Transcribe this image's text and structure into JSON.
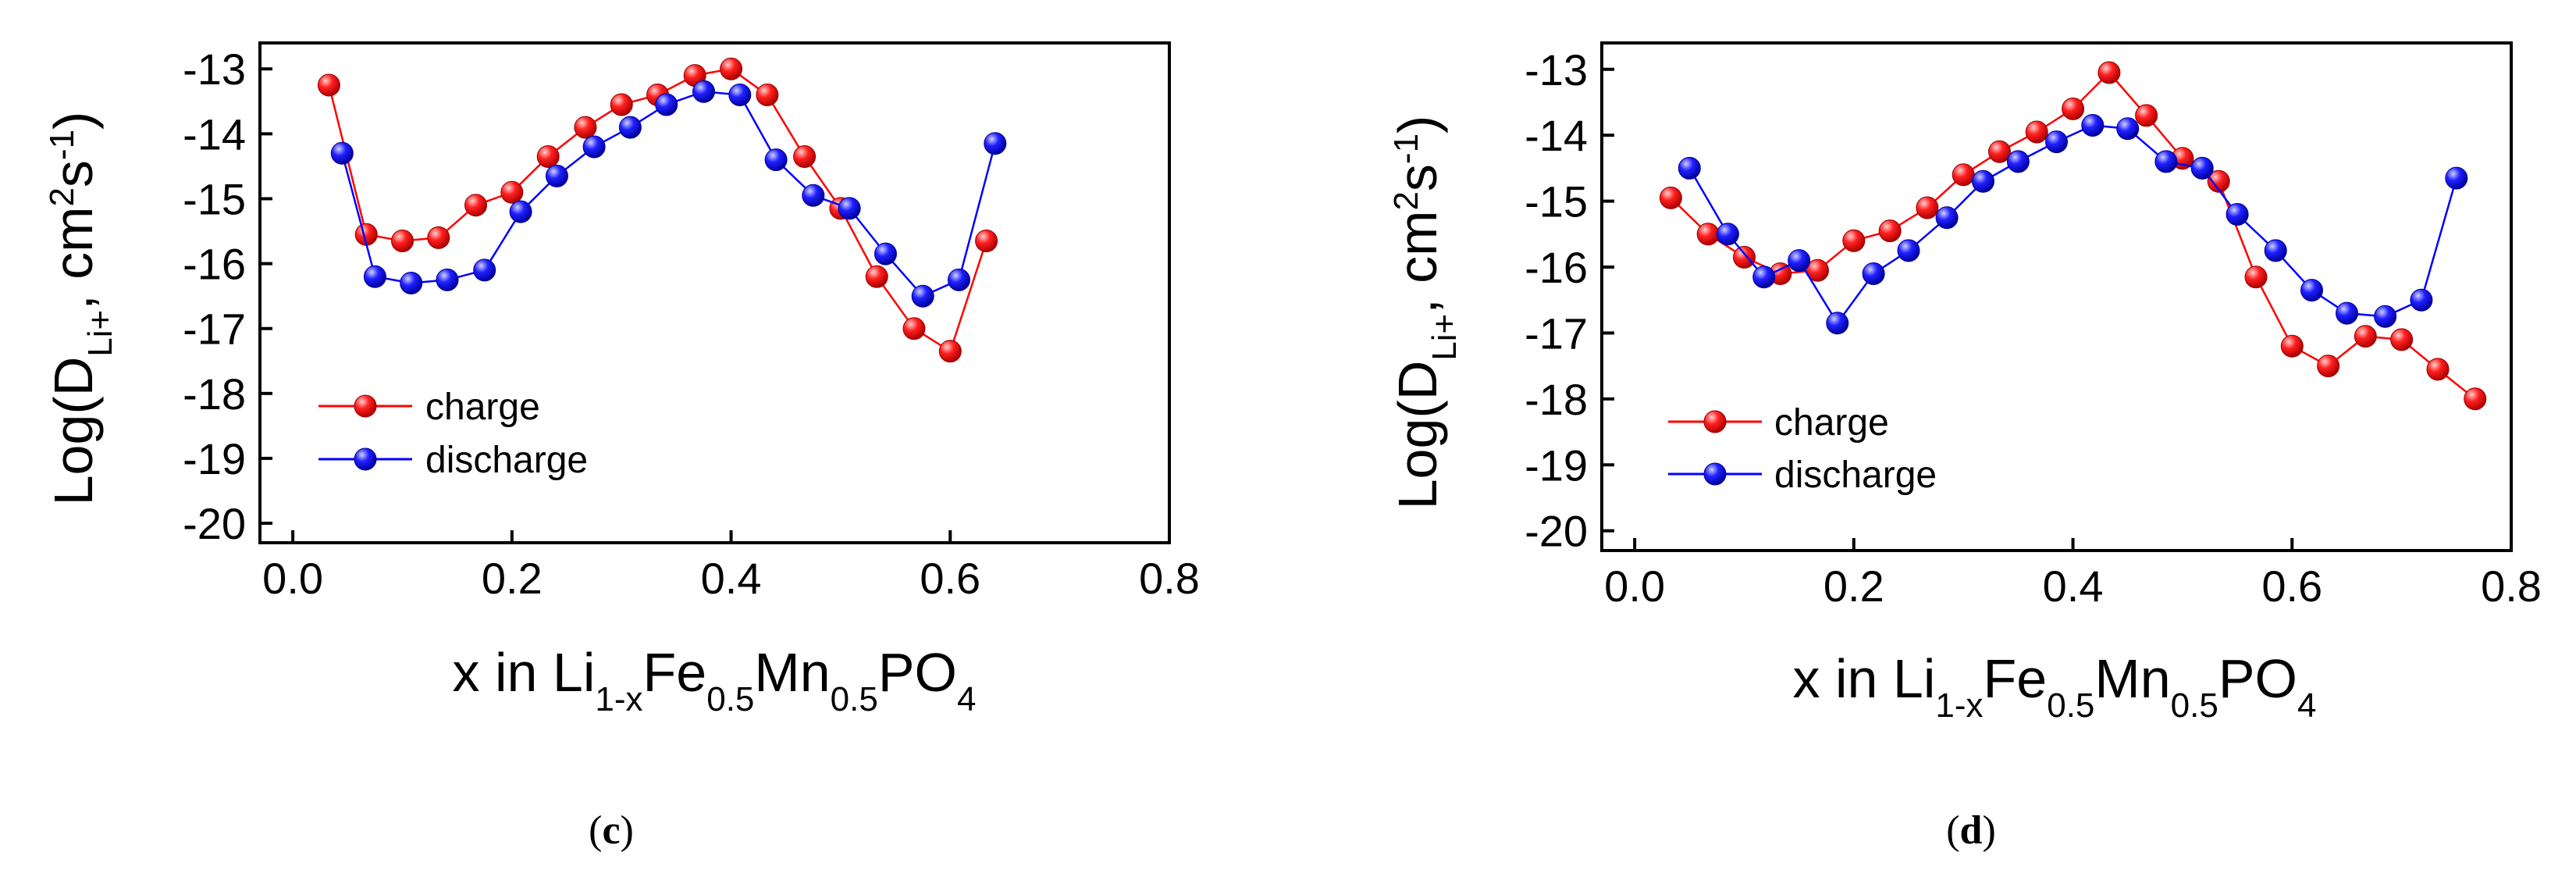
{
  "chart_data": [
    {
      "type": "line",
      "panel_label": "c",
      "xlabel": {
        "base": "x in Li",
        "sub1": "1-x",
        "mid1": "Fe",
        "sub2": "0.5",
        "mid2": "Mn",
        "sub3": "0.5",
        "mid3": "PO",
        "sub4": "4"
      },
      "ylabel": {
        "base": "Log(D",
        "sub": "Li+",
        "mid": ", cm",
        "sup1": "2",
        "mid2": "s",
        "sup2": "-1",
        "end": ")"
      },
      "xlim": [
        -0.03,
        0.8
      ],
      "ylim": [
        -20.3,
        -12.6
      ],
      "xticks": [
        0.0,
        0.2,
        0.4,
        0.6,
        0.8
      ],
      "xtick_labels": [
        "0.0",
        "0.2",
        "0.4",
        "0.6",
        "0.8"
      ],
      "yticks": [
        -20,
        -19,
        -18,
        -17,
        -16,
        -15,
        -14,
        -13
      ],
      "ytick_labels": [
        "-20",
        "-19",
        "-18",
        "-17",
        "-16",
        "-15",
        "-14",
        "-13"
      ],
      "legend_position": "lower-left",
      "series": [
        {
          "name": "charge",
          "color": "#ff0000",
          "x": [
            0.033,
            0.067,
            0.1,
            0.133,
            0.167,
            0.2,
            0.233,
            0.267,
            0.3,
            0.333,
            0.367,
            0.4,
            0.433,
            0.467,
            0.5,
            0.533,
            0.567,
            0.6,
            0.633
          ],
          "y": [
            -13.25,
            -15.55,
            -15.65,
            -15.6,
            -15.1,
            -14.9,
            -14.35,
            -13.9,
            -13.55,
            -13.4,
            -13.1,
            -13.0,
            -13.4,
            -14.35,
            -15.15,
            -16.2,
            -17.0,
            -17.35,
            -15.65
          ]
        },
        {
          "name": "discharge",
          "color": "#0000ff",
          "x": [
            0.045,
            0.075,
            0.108,
            0.141,
            0.175,
            0.208,
            0.241,
            0.275,
            0.308,
            0.341,
            0.375,
            0.408,
            0.441,
            0.475,
            0.508,
            0.541,
            0.575,
            0.608,
            0.641
          ],
          "y": [
            -14.3,
            -16.2,
            -16.3,
            -16.25,
            -16.1,
            -15.2,
            -14.65,
            -14.2,
            -13.9,
            -13.55,
            -13.35,
            -13.4,
            -14.4,
            -14.95,
            -15.15,
            -15.85,
            -16.5,
            -16.25,
            -14.15
          ]
        }
      ]
    },
    {
      "type": "line",
      "panel_label": "d",
      "xlabel": {
        "base": "x in Li",
        "sub1": "1-x",
        "mid1": "Fe",
        "sub2": "0.5",
        "mid2": "Mn",
        "sub3": "0.5",
        "mid3": "PO",
        "sub4": "4"
      },
      "ylabel": {
        "base": "Log(D",
        "sub": "Li+",
        "mid": ", cm",
        "sup1": "2",
        "mid2": "s",
        "sup2": "-1",
        "end": ")"
      },
      "xlim": [
        -0.03,
        0.8
      ],
      "ylim": [
        -20.3,
        -12.6
      ],
      "xticks": [
        0.0,
        0.2,
        0.4,
        0.6,
        0.8
      ],
      "xtick_labels": [
        "0.0",
        "0.2",
        "0.4",
        "0.6",
        "0.8"
      ],
      "yticks": [
        -20,
        -19,
        -18,
        -17,
        -16,
        -15,
        -14,
        -13
      ],
      "ytick_labels": [
        "-20",
        "-19",
        "-18",
        "-17",
        "-16",
        "-15",
        "-14",
        "-13"
      ],
      "legend_position": "lower-left",
      "series": [
        {
          "name": "charge",
          "color": "#ff0000",
          "x": [
            0.033,
            0.067,
            0.1,
            0.133,
            0.167,
            0.2,
            0.233,
            0.267,
            0.3,
            0.333,
            0.367,
            0.4,
            0.433,
            0.467,
            0.5,
            0.533,
            0.567,
            0.6,
            0.633,
            0.667,
            0.7,
            0.733,
            0.767
          ],
          "y": [
            -14.95,
            -15.5,
            -15.85,
            -16.1,
            -16.05,
            -15.6,
            -15.45,
            -15.1,
            -14.6,
            -14.25,
            -13.95,
            -13.6,
            -13.05,
            -13.7,
            -14.35,
            -14.7,
            -16.15,
            -17.2,
            -17.5,
            -17.05,
            -17.1,
            -17.55,
            -18.0
          ]
        },
        {
          "name": "discharge",
          "color": "#0000ff",
          "x": [
            0.05,
            0.085,
            0.118,
            0.15,
            0.185,
            0.218,
            0.25,
            0.285,
            0.318,
            0.35,
            0.385,
            0.418,
            0.45,
            0.485,
            0.518,
            0.55,
            0.585,
            0.618,
            0.65,
            0.685,
            0.718,
            0.75
          ],
          "y": [
            -14.5,
            -15.5,
            -16.15,
            -15.9,
            -16.85,
            -16.1,
            -15.75,
            -15.25,
            -14.7,
            -14.4,
            -14.1,
            -13.85,
            -13.9,
            -14.4,
            -14.5,
            -15.2,
            -15.75,
            -16.35,
            -16.7,
            -16.75,
            -16.5,
            -14.65
          ]
        }
      ]
    }
  ]
}
